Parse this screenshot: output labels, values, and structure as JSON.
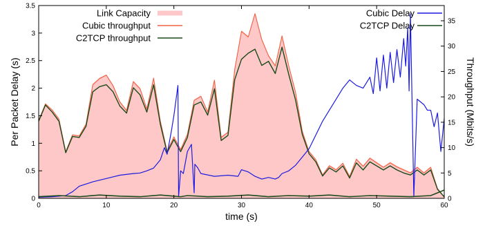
{
  "chart_data": {
    "type": "area",
    "xlabel": "time (s)",
    "ylabel": "Per Packet Delay (s)",
    "y2label": "Throughput (Mbits/s)",
    "xlim": [
      0,
      60
    ],
    "ylim": [
      0,
      3.5
    ],
    "y2lim": [
      0,
      38
    ],
    "xticks": [
      "0",
      "10",
      "20",
      "30",
      "40",
      "50",
      "60"
    ],
    "yticks": [
      "0",
      "0.5",
      "1",
      "1.5",
      "2",
      "2.5",
      "3",
      "3.5"
    ],
    "y2ticks": [
      "0",
      "5",
      "10",
      "15",
      "20",
      "25",
      "30",
      "35"
    ],
    "grid": false,
    "legend_left": [
      {
        "label": "Link Capacity",
        "color": "#ffc8c8",
        "kind": "area"
      },
      {
        "label": "Cubic throughput",
        "color": "#f06040",
        "kind": "line"
      },
      {
        "label": "C2TCP throughput",
        "color": "#1a4a1a",
        "kind": "line"
      }
    ],
    "legend_right": [
      {
        "label": "Cubic Delay",
        "color": "#1a1ae0",
        "kind": "line"
      },
      {
        "label": "C2TCP Delay",
        "color": "#1a4a1a",
        "kind": "line"
      }
    ],
    "series": [
      {
        "name": "Link Capacity",
        "axis": "right",
        "x": [
          0,
          1,
          2,
          3,
          4,
          5,
          6,
          7,
          8,
          9,
          10,
          11,
          12,
          13,
          14,
          15,
          16,
          17,
          18,
          19,
          20,
          21,
          22,
          23,
          24,
          25,
          26,
          27,
          28,
          29,
          30,
          31,
          32,
          33,
          34,
          35,
          36,
          37,
          38,
          39,
          40,
          41,
          42,
          43,
          44,
          45,
          46,
          47,
          48,
          49,
          50,
          51,
          52,
          53,
          54,
          55,
          56,
          57,
          58,
          59,
          60
        ],
        "values": [
          15.5,
          18.8,
          17.5,
          15.8,
          9.3,
          12.6,
          12.4,
          14.8,
          22.6,
          23.8,
          24.4,
          22.4,
          19.2,
          17.5,
          23.2,
          21.8,
          17.8,
          23.9,
          15.4,
          9.5,
          12.3,
          9.8,
          12.8,
          19.5,
          20.3,
          17.2,
          23.5,
          12.2,
          13.2,
          25.6,
          33.1,
          32.0,
          36.6,
          31.5,
          28.3,
          26.3,
          32.2,
          26.3,
          21.1,
          13.4,
          9.4,
          7.8,
          4.8,
          6.6,
          5.8,
          7.1,
          4.5,
          7.9,
          6.5,
          8.1,
          7.2,
          6.3,
          7.2,
          6.4,
          5.8,
          5.2,
          6.3,
          5.2,
          6.3,
          2.1,
          0.5
        ]
      },
      {
        "name": "Cubic throughput",
        "axis": "right",
        "x": [
          0,
          1,
          2,
          3,
          4,
          5,
          6,
          7,
          8,
          9,
          10,
          11,
          12,
          13,
          14,
          15,
          16,
          17,
          18,
          19,
          20,
          21,
          22,
          23,
          24,
          25,
          26,
          27,
          28,
          29,
          30,
          31,
          32,
          33,
          34,
          35,
          36,
          37,
          38,
          39,
          40,
          41,
          42,
          43,
          44,
          45,
          46,
          47,
          48,
          49,
          50,
          51,
          52,
          53,
          54,
          55,
          56,
          57,
          58,
          59,
          60
        ],
        "values": [
          15.4,
          18.6,
          17.4,
          15.6,
          9.2,
          12.5,
          12.3,
          14.6,
          22.4,
          23.6,
          24.3,
          22.2,
          19.0,
          17.3,
          23.0,
          21.6,
          17.6,
          23.7,
          15.2,
          9.3,
          12.1,
          9.6,
          12.6,
          19.3,
          20.1,
          17.0,
          23.3,
          12.0,
          13.0,
          25.4,
          32.9,
          31.8,
          36.4,
          31.3,
          28.1,
          26.1,
          32.0,
          26.1,
          20.9,
          13.2,
          9.2,
          7.6,
          4.6,
          6.4,
          5.6,
          6.9,
          4.3,
          7.7,
          6.3,
          7.9,
          7.0,
          6.1,
          7.0,
          6.2,
          5.6,
          5.0,
          6.1,
          5.0,
          6.1,
          1.9,
          0.3
        ]
      },
      {
        "name": "C2TCP throughput",
        "axis": "right",
        "x": [
          0,
          1,
          2,
          3,
          4,
          5,
          6,
          7,
          8,
          9,
          10,
          11,
          12,
          13,
          14,
          15,
          16,
          17,
          18,
          19,
          20,
          21,
          22,
          23,
          24,
          25,
          26,
          27,
          28,
          29,
          30,
          31,
          32,
          33,
          34,
          35,
          36,
          37,
          38,
          39,
          40,
          41,
          42,
          43,
          44,
          45,
          46,
          47,
          48,
          49,
          50,
          51,
          52,
          53,
          54,
          55,
          56,
          57,
          58,
          59,
          60
        ],
        "values": [
          15.2,
          18.4,
          17.0,
          15.2,
          9.0,
          12.2,
          12.0,
          14.2,
          21.0,
          22.0,
          22.4,
          21.0,
          18.2,
          16.8,
          21.8,
          20.4,
          17.0,
          22.4,
          14.6,
          9.0,
          11.6,
          9.2,
          12.0,
          18.4,
          19.0,
          16.4,
          21.6,
          11.4,
          12.4,
          23.4,
          27.4,
          28.6,
          29.4,
          26.2,
          27.0,
          24.6,
          29.8,
          24.4,
          19.4,
          12.6,
          8.8,
          7.2,
          4.4,
          6.0,
          5.2,
          6.4,
          4.0,
          7.0,
          5.6,
          7.2,
          6.4,
          5.6,
          6.4,
          5.6,
          5.0,
          4.6,
          5.6,
          4.6,
          5.6,
          1.8,
          0.3
        ]
      },
      {
        "name": "Cubic Delay",
        "axis": "left",
        "x": [
          0,
          2,
          4,
          5,
          6,
          8,
          10,
          12,
          14,
          15,
          16,
          17,
          18,
          18.6,
          19,
          19.6,
          20,
          20.6,
          20.7,
          21,
          21.4,
          22,
          22.6,
          23,
          23.1,
          23.5,
          24,
          26,
          28,
          29.5,
          30,
          31,
          32,
          33,
          34,
          35,
          35.5,
          36,
          37,
          38,
          39,
          40,
          41,
          42,
          43,
          44,
          45,
          46,
          47,
          48,
          49,
          49.5,
          50,
          50.5,
          51,
          51.5,
          52,
          52.5,
          53,
          53.5,
          54,
          54.3,
          54.6,
          54.8,
          55,
          55.5,
          56,
          56.5,
          57,
          57.5,
          58,
          58.5,
          59,
          59.5,
          60
        ],
        "values": [
          0.02,
          0.03,
          0.05,
          0.12,
          0.22,
          0.3,
          0.36,
          0.42,
          0.45,
          0.46,
          0.5,
          0.55,
          0.7,
          0.92,
          0.8,
          1.2,
          1.5,
          2.05,
          0.03,
          0.5,
          0.45,
          0.85,
          0.98,
          0.1,
          0.62,
          0.56,
          0.45,
          0.4,
          0.42,
          0.4,
          0.52,
          0.48,
          0.4,
          0.35,
          0.38,
          0.35,
          0.38,
          0.45,
          0.5,
          0.6,
          0.75,
          0.9,
          1.15,
          1.4,
          1.6,
          1.8,
          2.0,
          2.15,
          2.05,
          2.0,
          2.2,
          1.9,
          2.55,
          1.95,
          2.6,
          2.0,
          2.65,
          2.1,
          2.7,
          2.2,
          2.9,
          2.4,
          3.1,
          1.95,
          3.35,
          0.03,
          1.8,
          1.75,
          1.7,
          1.6,
          1.6,
          1.3,
          1.55,
          0.85,
          1.45
        ]
      },
      {
        "name": "C2TCP Delay",
        "axis": "left",
        "x": [
          0,
          3,
          6,
          9,
          12,
          15,
          18,
          20,
          21,
          22,
          25,
          28,
          31,
          34,
          37,
          40,
          43,
          46,
          49,
          52,
          55,
          58,
          59,
          60
        ],
        "values": [
          0.03,
          0.05,
          0.03,
          0.06,
          0.04,
          0.03,
          0.06,
          0.04,
          0.03,
          0.05,
          0.03,
          0.04,
          0.06,
          0.03,
          0.05,
          0.04,
          0.06,
          0.03,
          0.05,
          0.04,
          0.03,
          0.05,
          0.1,
          0.15
        ]
      }
    ]
  }
}
